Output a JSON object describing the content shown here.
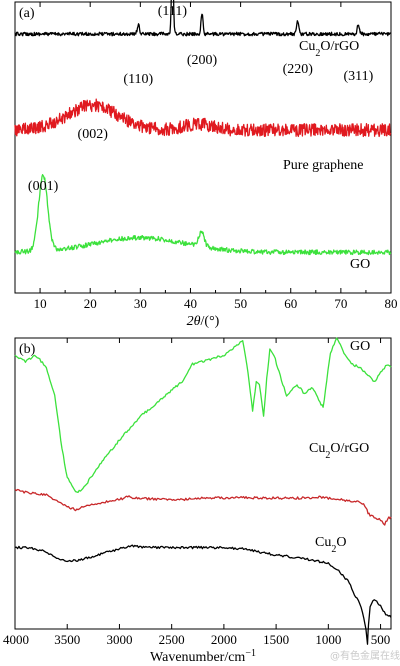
{
  "chart_data": [
    {
      "panel": "(a)",
      "type": "line",
      "xlabel": "2θ/(°)",
      "xlim": [
        5,
        80
      ],
      "xticks": [
        10,
        20,
        30,
        40,
        50,
        60,
        70,
        80
      ],
      "yticks": false,
      "series": [
        {
          "name": "Cu2O/rGO",
          "color": "#000000",
          "baseline": 0.11,
          "noise": 0.006,
          "peaks": [
            {
              "x": 29.6,
              "h": 0.032,
              "w": 0.22,
              "label": "(110)"
            },
            {
              "x": 36.4,
              "h": 0.27,
              "w": 0.18,
              "label": "(111)"
            },
            {
              "x": 42.3,
              "h": 0.07,
              "w": 0.2,
              "label": "(200)"
            },
            {
              "x": 61.4,
              "h": 0.045,
              "w": 0.22,
              "label": "(220)"
            },
            {
              "x": 73.5,
              "h": 0.033,
              "w": 0.22,
              "label": "(311)"
            }
          ]
        },
        {
          "name": "Pure graphene",
          "color": "#e0191f",
          "baseline": 0.44,
          "noise": 0.022,
          "peaks": [
            {
              "x": 20.5,
              "h": 0.085,
              "w": 5.0,
              "label": "(002)"
            },
            {
              "x": 41.5,
              "h": 0.02,
              "w": 3.0
            }
          ]
        },
        {
          "name": "GO",
          "color": "#3ce13c",
          "baseline": 0.86,
          "noise": 0.008,
          "peaks": [
            {
              "x": 10.6,
              "h": 0.26,
              "w": 0.9,
              "label": "(001)"
            },
            {
              "x": 30.0,
              "h": 0.05,
              "w": 9.0
            },
            {
              "x": 42.2,
              "h": 0.05,
              "w": 0.55
            }
          ]
        }
      ],
      "peak_labels": [
        {
          "text": "(110)",
          "x": 29.6
        },
        {
          "text": "(111)",
          "x": 36.4
        },
        {
          "text": "(200)",
          "x": 42.3
        },
        {
          "text": "(220)",
          "x": 61.4
        },
        {
          "text": "(311)",
          "x": 73.5
        },
        {
          "text": "(002)",
          "x": 20.5
        },
        {
          "text": "(001)",
          "x": 10.6
        }
      ],
      "series_labels": [
        "Cu2O/rGO",
        "Pure graphene",
        "GO"
      ]
    },
    {
      "panel": "(b)",
      "type": "line",
      "xlabel": "Wavenumber/cm⁻¹",
      "xlim": [
        4000,
        400
      ],
      "xticks": [
        4000,
        3500,
        3000,
        2500,
        2000,
        1500,
        1000,
        500
      ],
      "yticks": false,
      "series": [
        {
          "name": "GO",
          "color": "#3ce13c",
          "points": [
            [
              4000,
              0.06
            ],
            [
              3900,
              0.08
            ],
            [
              3800,
              0.06
            ],
            [
              3700,
              0.1
            ],
            [
              3620,
              0.2
            ],
            [
              3550,
              0.38
            ],
            [
              3500,
              0.48
            ],
            [
              3420,
              0.53
            ],
            [
              3350,
              0.52
            ],
            [
              3200,
              0.44
            ],
            [
              3000,
              0.35
            ],
            [
              2800,
              0.27
            ],
            [
              2600,
              0.21
            ],
            [
              2400,
              0.15
            ],
            [
              2300,
              0.09
            ],
            [
              2200,
              0.08
            ],
            [
              2000,
              0.06
            ],
            [
              1900,
              0.03
            ],
            [
              1820,
              0.01
            ],
            [
              1780,
              0.09
            ],
            [
              1725,
              0.25
            ],
            [
              1690,
              0.15
            ],
            [
              1660,
              0.16
            ],
            [
              1620,
              0.27
            ],
            [
              1590,
              0.14
            ],
            [
              1560,
              0.04
            ],
            [
              1520,
              0.06
            ],
            [
              1460,
              0.13
            ],
            [
              1400,
              0.2
            ],
            [
              1300,
              0.16
            ],
            [
              1230,
              0.19
            ],
            [
              1150,
              0.17
            ],
            [
              1080,
              0.22
            ],
            [
              1050,
              0.24
            ],
            [
              980,
              0.05
            ],
            [
              920,
              0.0
            ],
            [
              850,
              0.05
            ],
            [
              780,
              0.09
            ],
            [
              700,
              0.1
            ],
            [
              620,
              0.13
            ],
            [
              560,
              0.15
            ],
            [
              500,
              0.12
            ],
            [
              440,
              0.09
            ],
            [
              400,
              0.1
            ]
          ]
        },
        {
          "name": "Cu2O/rGO",
          "color": "#c8282a",
          "points": [
            [
              4000,
              0.52
            ],
            [
              3900,
              0.53
            ],
            [
              3700,
              0.54
            ],
            [
              3600,
              0.56
            ],
            [
              3500,
              0.58
            ],
            [
              3420,
              0.59
            ],
            [
              3300,
              0.575
            ],
            [
              3100,
              0.56
            ],
            [
              2950,
              0.55
            ],
            [
              2920,
              0.545
            ],
            [
              2850,
              0.55
            ],
            [
              2600,
              0.555
            ],
            [
              2400,
              0.555
            ],
            [
              2200,
              0.55
            ],
            [
              2000,
              0.55
            ],
            [
              1800,
              0.548
            ],
            [
              1600,
              0.55
            ],
            [
              1400,
              0.55
            ],
            [
              1200,
              0.55
            ],
            [
              1100,
              0.546
            ],
            [
              1000,
              0.55
            ],
            [
              900,
              0.555
            ],
            [
              800,
              0.56
            ],
            [
              700,
              0.565
            ],
            [
              650,
              0.575
            ],
            [
              620,
              0.6
            ],
            [
              600,
              0.61
            ],
            [
              560,
              0.615
            ],
            [
              500,
              0.625
            ],
            [
              460,
              0.64
            ],
            [
              430,
              0.62
            ],
            [
              400,
              0.615
            ]
          ]
        },
        {
          "name": "Cu2O",
          "color": "#000000",
          "points": [
            [
              4000,
              0.72
            ],
            [
              3900,
              0.72
            ],
            [
              3800,
              0.725
            ],
            [
              3700,
              0.735
            ],
            [
              3600,
              0.755
            ],
            [
              3500,
              0.765
            ],
            [
              3400,
              0.765
            ],
            [
              3200,
              0.745
            ],
            [
              3000,
              0.725
            ],
            [
              2900,
              0.715
            ],
            [
              2700,
              0.72
            ],
            [
              2500,
              0.72
            ],
            [
              2300,
              0.72
            ],
            [
              2100,
              0.72
            ],
            [
              2000,
              0.72
            ],
            [
              1800,
              0.725
            ],
            [
              1600,
              0.74
            ],
            [
              1400,
              0.75
            ],
            [
              1200,
              0.76
            ],
            [
              1000,
              0.775
            ],
            [
              900,
              0.8
            ],
            [
              800,
              0.84
            ],
            [
              750,
              0.88
            ],
            [
              700,
              0.91
            ],
            [
              660,
              0.96
            ],
            [
              640,
              1.0
            ],
            [
              625,
              1.05
            ],
            [
              615,
              0.98
            ],
            [
              600,
              0.92
            ],
            [
              560,
              0.9
            ],
            [
              500,
              0.92
            ],
            [
              450,
              0.95
            ],
            [
              400,
              0.96
            ]
          ]
        }
      ],
      "series_labels": [
        "GO",
        "Cu2O/rGO",
        "Cu2O"
      ]
    }
  ],
  "watermark": "@有色金属在线"
}
